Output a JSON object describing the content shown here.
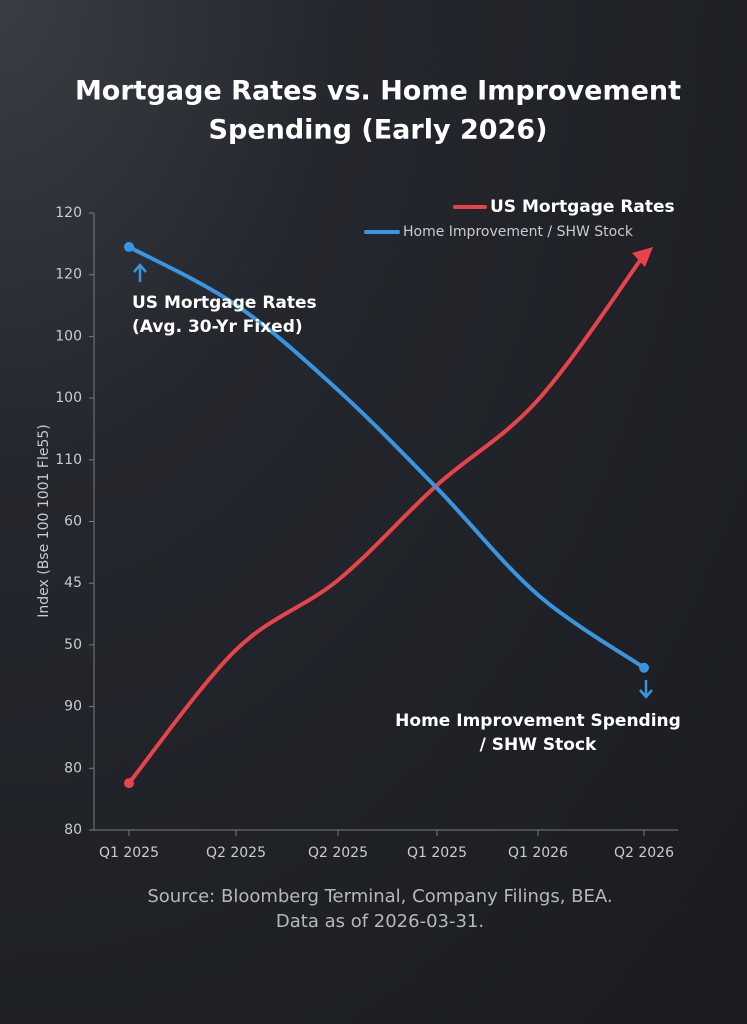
{
  "chart_data": {
    "type": "line",
    "title": [
      "Mortgage Rates vs. Home Improvement",
      "Spending (Early 2026)"
    ],
    "y_label": "Index (Bse 100 1001 Fle55)",
    "categories": [
      "Q1 2025",
      "Q2 2025",
      "Q2 2025",
      "Q1 2025",
      "Q1 2026",
      "Q2 2026"
    ],
    "series": [
      {
        "name": "US Mortgage Rates",
        "color": "#e8434a",
        "values": [
          0.76,
          2.92,
          4.05,
          5.59,
          6.97,
          9.32
        ]
      },
      {
        "name": "Home Improvement / SHW Stock",
        "color": "#3a95e0",
        "values": [
          9.45,
          8.51,
          7.13,
          5.54,
          3.81,
          2.63
        ]
      }
    ],
    "ylim": [
      0,
      10
    ],
    "yticks": [
      {
        "value": 0,
        "label": "80"
      },
      {
        "value": 1,
        "label": "80"
      },
      {
        "value": 2,
        "label": "90"
      },
      {
        "value": 3,
        "label": "50"
      },
      {
        "value": 4,
        "label": "45"
      },
      {
        "value": 5,
        "label": "60"
      },
      {
        "value": 6,
        "label": "110"
      },
      {
        "value": 7,
        "label": "100"
      },
      {
        "value": 8,
        "label": "100"
      },
      {
        "value": 9,
        "label": "120"
      },
      {
        "value": 10,
        "label": "120"
      }
    ],
    "annotations": [
      [
        "US Mortgage Rates",
        "(Avg. 30-Yr Fixed)"
      ],
      [
        "Home Improvement Spending",
        "/ SHW Stock"
      ]
    ],
    "source": [
      "Source: Bloomberg Terminal, Company Filings, BEA.",
      "Data as of 2026-03-31."
    ]
  }
}
